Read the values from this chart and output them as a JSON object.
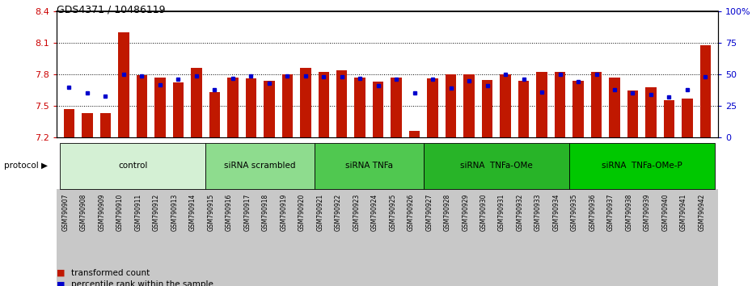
{
  "title": "GDS4371 / 10486119",
  "samples": [
    "GSM790907",
    "GSM790908",
    "GSM790909",
    "GSM790910",
    "GSM790911",
    "GSM790912",
    "GSM790913",
    "GSM790914",
    "GSM790915",
    "GSM790916",
    "GSM790917",
    "GSM790918",
    "GSM790919",
    "GSM790920",
    "GSM790921",
    "GSM790922",
    "GSM790923",
    "GSM790924",
    "GSM790925",
    "GSM790926",
    "GSM790927",
    "GSM790928",
    "GSM790929",
    "GSM790930",
    "GSM790931",
    "GSM790932",
    "GSM790933",
    "GSM790934",
    "GSM790935",
    "GSM790936",
    "GSM790937",
    "GSM790938",
    "GSM790939",
    "GSM790940",
    "GSM790941",
    "GSM790942"
  ],
  "red_values": [
    7.47,
    7.43,
    7.43,
    8.2,
    7.79,
    7.77,
    7.72,
    7.86,
    7.63,
    7.77,
    7.76,
    7.74,
    7.8,
    7.86,
    7.82,
    7.84,
    7.77,
    7.73,
    7.77,
    7.26,
    7.76,
    7.8,
    7.8,
    7.75,
    7.8,
    7.74,
    7.82,
    7.82,
    7.74,
    7.82,
    7.77,
    7.65,
    7.68,
    7.55,
    7.57,
    8.08
  ],
  "blue_values": [
    40,
    35,
    33,
    50,
    49,
    42,
    46,
    49,
    38,
    47,
    49,
    43,
    49,
    49,
    48,
    48,
    47,
    41,
    46,
    35,
    46,
    39,
    45,
    41,
    50,
    46,
    36,
    50,
    44,
    50,
    38,
    35,
    34,
    32,
    38,
    48
  ],
  "groups": [
    {
      "label": "control",
      "start": 0,
      "end": 7,
      "color": "#d4f0d4"
    },
    {
      "label": "siRNA scrambled",
      "start": 8,
      "end": 13,
      "color": "#8edc8e"
    },
    {
      "label": "siRNA TNFa",
      "start": 14,
      "end": 19,
      "color": "#50c850"
    },
    {
      "label": "siRNA  TNFa-OMe",
      "start": 20,
      "end": 27,
      "color": "#28b428"
    },
    {
      "label": "siRNA  TNFa-OMe-P",
      "start": 28,
      "end": 35,
      "color": "#00c800"
    }
  ],
  "ylim_left": [
    7.2,
    8.4
  ],
  "ylim_right": [
    0,
    100
  ],
  "yticks_left": [
    7.2,
    7.5,
    7.8,
    8.1,
    8.4
  ],
  "yticks_right": [
    0,
    25,
    50,
    75,
    100
  ],
  "bar_color": "#c01800",
  "blue_color": "#0000cc",
  "grid_lines": [
    7.5,
    7.8,
    8.1
  ],
  "tick_bg_color": "#c8c8c8",
  "plot_bg": "#ffffff"
}
